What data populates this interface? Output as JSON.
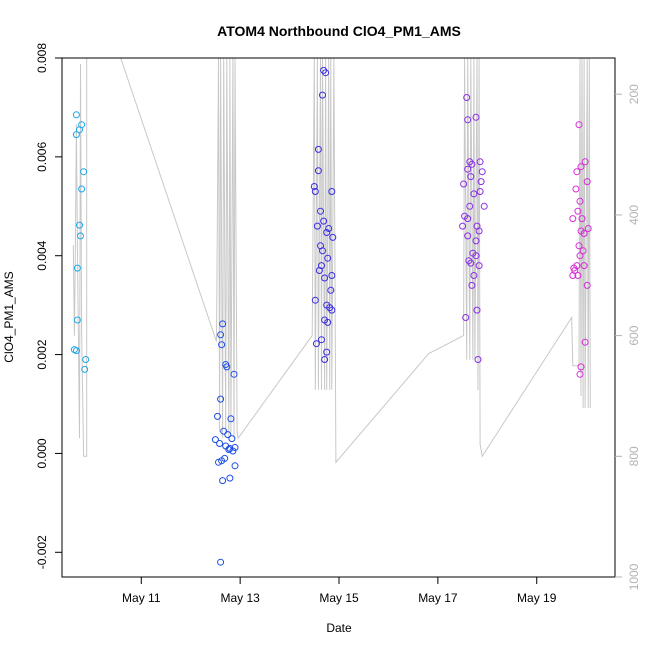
{
  "chart_data": {
    "type": "scatter",
    "title": "ATOM4 Northbound ClO4_PM1_AMS",
    "xlabel": "Date",
    "ylabel": "ClO4_PM1_AMS",
    "xlim": [
      "2018-05-09T09:30",
      "2018-05-20T14:00"
    ],
    "ylim": [
      -0.0025,
      0.008
    ],
    "x_ticks": [
      {
        "date": "2018-05-11",
        "label": "May 11"
      },
      {
        "date": "2018-05-13",
        "label": "May 13"
      },
      {
        "date": "2018-05-15",
        "label": "May 15"
      },
      {
        "date": "2018-05-17",
        "label": "May 17"
      },
      {
        "date": "2018-05-19",
        "label": "May 19"
      }
    ],
    "y_ticks": [
      {
        "value": -0.002,
        "label": "-0.002"
      },
      {
        "value": 0,
        "label": "0.000"
      },
      {
        "value": 0.002,
        "label": "0.002"
      },
      {
        "value": 0.004,
        "label": "0.004"
      },
      {
        "value": 0.006,
        "label": "0.006"
      },
      {
        "value": 0.008,
        "label": "0.008"
      }
    ],
    "secondary_axis": {
      "side": "right",
      "color": "#b3b3b3",
      "reversed": true,
      "range": [
        1000,
        140
      ],
      "ticks": [
        {
          "value": 200,
          "label": "200"
        },
        {
          "value": 400,
          "label": "400"
        },
        {
          "value": 600,
          "label": "600"
        },
        {
          "value": 800,
          "label": "800"
        },
        {
          "value": 1000,
          "label": "1000"
        }
      ]
    },
    "grid": false,
    "legend": "none",
    "marker": "open-circle",
    "colors": {
      "cyan": "#1fa8e8",
      "blue": "#1d4fe6",
      "indigo": "#3a2ee0",
      "purple": "#8c2ee6",
      "magenta": "#d52ed6",
      "line": "#c8c8c8"
    },
    "points": [
      {
        "x": "2018-05-09T16:30",
        "y": 0.00685,
        "c": "cyan"
      },
      {
        "x": "2018-05-09T16:30",
        "y": 0.00645,
        "c": "cyan"
      },
      {
        "x": "2018-05-09T19:00",
        "y": 0.00665,
        "c": "cyan"
      },
      {
        "x": "2018-05-09T18:00",
        "y": 0.00655,
        "c": "cyan"
      },
      {
        "x": "2018-05-09T20:00",
        "y": 0.0057,
        "c": "cyan"
      },
      {
        "x": "2018-05-09T19:00",
        "y": 0.00535,
        "c": "cyan"
      },
      {
        "x": "2018-05-09T18:00",
        "y": 0.00462,
        "c": "cyan"
      },
      {
        "x": "2018-05-09T18:30",
        "y": 0.0044,
        "c": "cyan"
      },
      {
        "x": "2018-05-09T17:00",
        "y": 0.00375,
        "c": "cyan"
      },
      {
        "x": "2018-05-09T17:00",
        "y": 0.0027,
        "c": "cyan"
      },
      {
        "x": "2018-05-09T15:30",
        "y": 0.0021,
        "c": "cyan"
      },
      {
        "x": "2018-05-09T16:30",
        "y": 0.00208,
        "c": "cyan"
      },
      {
        "x": "2018-05-09T21:00",
        "y": 0.0019,
        "c": "cyan"
      },
      {
        "x": "2018-05-09T20:30",
        "y": 0.0017,
        "c": "cyan"
      },
      {
        "x": "2018-05-12T14:30",
        "y": 0.0011,
        "c": "blue"
      },
      {
        "x": "2018-05-12T15:30",
        "y": 0.00262,
        "c": "blue"
      },
      {
        "x": "2018-05-12T14:30",
        "y": 0.0024,
        "c": "blue"
      },
      {
        "x": "2018-05-12T15:00",
        "y": 0.0022,
        "c": "blue"
      },
      {
        "x": "2018-05-12T17:00",
        "y": 0.0018,
        "c": "blue"
      },
      {
        "x": "2018-05-12T17:30",
        "y": 0.00175,
        "c": "blue"
      },
      {
        "x": "2018-05-12T21:00",
        "y": 0.0016,
        "c": "blue"
      },
      {
        "x": "2018-05-12T13:00",
        "y": 0.00075,
        "c": "blue"
      },
      {
        "x": "2018-05-12T19:30",
        "y": 0.0007,
        "c": "blue"
      },
      {
        "x": "2018-05-12T16:00",
        "y": 0.00045,
        "c": "blue"
      },
      {
        "x": "2018-05-12T18:00",
        "y": 0.00038,
        "c": "blue"
      },
      {
        "x": "2018-05-12T20:00",
        "y": 0.0003,
        "c": "blue"
      },
      {
        "x": "2018-05-12T12:00",
        "y": 0.00028,
        "c": "blue"
      },
      {
        "x": "2018-05-12T14:00",
        "y": 0.0002,
        "c": "blue"
      },
      {
        "x": "2018-05-12T17:00",
        "y": 0.00015,
        "c": "blue"
      },
      {
        "x": "2018-05-12T19:00",
        "y": 0.0001,
        "c": "blue"
      },
      {
        "x": "2018-05-12T21:30",
        "y": 0.00012,
        "c": "blue"
      },
      {
        "x": "2018-05-12T20:30",
        "y": 5e-05,
        "c": "blue"
      },
      {
        "x": "2018-05-12T18:30",
        "y": 8e-05,
        "c": "blue"
      },
      {
        "x": "2018-05-12T16:30",
        "y": -0.0001,
        "c": "blue"
      },
      {
        "x": "2018-05-12T13:30",
        "y": -0.00018,
        "c": "blue"
      },
      {
        "x": "2018-05-12T15:00",
        "y": -0.00015,
        "c": "blue"
      },
      {
        "x": "2018-05-12T21:30",
        "y": -0.00025,
        "c": "blue"
      },
      {
        "x": "2018-05-12T15:30",
        "y": -0.00055,
        "c": "blue"
      },
      {
        "x": "2018-05-12T19:00",
        "y": -0.0005,
        "c": "blue"
      },
      {
        "x": "2018-05-12T14:30",
        "y": -0.0022,
        "c": "blue"
      },
      {
        "x": "2018-05-14T16:30",
        "y": 0.00775,
        "c": "indigo"
      },
      {
        "x": "2018-05-14T17:30",
        "y": 0.0077,
        "c": "indigo"
      },
      {
        "x": "2018-05-14T16:00",
        "y": 0.00725,
        "c": "indigo"
      },
      {
        "x": "2018-05-14T14:00",
        "y": 0.00615,
        "c": "indigo"
      },
      {
        "x": "2018-05-14T14:00",
        "y": 0.00572,
        "c": "indigo"
      },
      {
        "x": "2018-05-14T12:00",
        "y": 0.0054,
        "c": "indigo"
      },
      {
        "x": "2018-05-14T12:30",
        "y": 0.0053,
        "c": "indigo"
      },
      {
        "x": "2018-05-14T20:30",
        "y": 0.0053,
        "c": "indigo"
      },
      {
        "x": "2018-05-14T15:00",
        "y": 0.0049,
        "c": "indigo"
      },
      {
        "x": "2018-05-14T16:30",
        "y": 0.0047,
        "c": "indigo"
      },
      {
        "x": "2018-05-14T13:30",
        "y": 0.0046,
        "c": "indigo"
      },
      {
        "x": "2018-05-14T19:00",
        "y": 0.00455,
        "c": "indigo"
      },
      {
        "x": "2018-05-14T18:00",
        "y": 0.00447,
        "c": "indigo"
      },
      {
        "x": "2018-05-14T21:00",
        "y": 0.00437,
        "c": "indigo"
      },
      {
        "x": "2018-05-14T15:00",
        "y": 0.0042,
        "c": "indigo"
      },
      {
        "x": "2018-05-14T16:00",
        "y": 0.0041,
        "c": "indigo"
      },
      {
        "x": "2018-05-14T18:30",
        "y": 0.00395,
        "c": "indigo"
      },
      {
        "x": "2018-05-14T15:30",
        "y": 0.0038,
        "c": "indigo"
      },
      {
        "x": "2018-05-14T14:30",
        "y": 0.0037,
        "c": "indigo"
      },
      {
        "x": "2018-05-14T17:00",
        "y": 0.00355,
        "c": "indigo"
      },
      {
        "x": "2018-05-14T20:30",
        "y": 0.0036,
        "c": "indigo"
      },
      {
        "x": "2018-05-14T20:00",
        "y": 0.0033,
        "c": "indigo"
      },
      {
        "x": "2018-05-14T12:30",
        "y": 0.0031,
        "c": "indigo"
      },
      {
        "x": "2018-05-14T18:00",
        "y": 0.003,
        "c": "indigo"
      },
      {
        "x": "2018-05-14T19:30",
        "y": 0.00295,
        "c": "indigo"
      },
      {
        "x": "2018-05-14T20:30",
        "y": 0.0029,
        "c": "indigo"
      },
      {
        "x": "2018-05-14T17:00",
        "y": 0.0027,
        "c": "indigo"
      },
      {
        "x": "2018-05-14T18:30",
        "y": 0.00265,
        "c": "indigo"
      },
      {
        "x": "2018-05-14T15:30",
        "y": 0.0023,
        "c": "indigo"
      },
      {
        "x": "2018-05-14T13:00",
        "y": 0.00222,
        "c": "indigo"
      },
      {
        "x": "2018-05-14T18:00",
        "y": 0.00205,
        "c": "indigo"
      },
      {
        "x": "2018-05-14T17:00",
        "y": 0.0019,
        "c": "indigo"
      },
      {
        "x": "2018-05-17T14:00",
        "y": 0.0072,
        "c": "purple"
      },
      {
        "x": "2018-05-17T18:30",
        "y": 0.0068,
        "c": "purple"
      },
      {
        "x": "2018-05-17T14:30",
        "y": 0.00675,
        "c": "purple"
      },
      {
        "x": "2018-05-17T15:30",
        "y": 0.0059,
        "c": "purple"
      },
      {
        "x": "2018-05-17T16:30",
        "y": 0.00585,
        "c": "purple"
      },
      {
        "x": "2018-05-17T20:30",
        "y": 0.0059,
        "c": "purple"
      },
      {
        "x": "2018-05-17T14:30",
        "y": 0.00575,
        "c": "purple"
      },
      {
        "x": "2018-05-17T21:30",
        "y": 0.0057,
        "c": "purple"
      },
      {
        "x": "2018-05-17T16:00",
        "y": 0.0056,
        "c": "purple"
      },
      {
        "x": "2018-05-17T12:30",
        "y": 0.00545,
        "c": "purple"
      },
      {
        "x": "2018-05-17T21:00",
        "y": 0.0055,
        "c": "purple"
      },
      {
        "x": "2018-05-17T17:30",
        "y": 0.00525,
        "c": "purple"
      },
      {
        "x": "2018-05-17T20:30",
        "y": 0.0053,
        "c": "purple"
      },
      {
        "x": "2018-05-17T15:30",
        "y": 0.005,
        "c": "purple"
      },
      {
        "x": "2018-05-17T22:30",
        "y": 0.005,
        "c": "purple"
      },
      {
        "x": "2018-05-17T13:00",
        "y": 0.0048,
        "c": "purple"
      },
      {
        "x": "2018-05-17T14:30",
        "y": 0.00475,
        "c": "purple"
      },
      {
        "x": "2018-05-17T19:00",
        "y": 0.0046,
        "c": "purple"
      },
      {
        "x": "2018-05-17T12:00",
        "y": 0.0046,
        "c": "purple"
      },
      {
        "x": "2018-05-17T20:00",
        "y": 0.0045,
        "c": "purple"
      },
      {
        "x": "2018-05-17T14:30",
        "y": 0.0044,
        "c": "purple"
      },
      {
        "x": "2018-05-17T18:30",
        "y": 0.0043,
        "c": "purple"
      },
      {
        "x": "2018-05-17T17:00",
        "y": 0.00405,
        "c": "purple"
      },
      {
        "x": "2018-05-17T18:30",
        "y": 0.004,
        "c": "purple"
      },
      {
        "x": "2018-05-17T20:00",
        "y": 0.0038,
        "c": "purple"
      },
      {
        "x": "2018-05-17T15:00",
        "y": 0.0039,
        "c": "purple"
      },
      {
        "x": "2018-05-17T16:00",
        "y": 0.00385,
        "c": "purple"
      },
      {
        "x": "2018-05-17T17:30",
        "y": 0.0036,
        "c": "purple"
      },
      {
        "x": "2018-05-17T16:30",
        "y": 0.0034,
        "c": "purple"
      },
      {
        "x": "2018-05-17T19:00",
        "y": 0.0029,
        "c": "purple"
      },
      {
        "x": "2018-05-17T13:30",
        "y": 0.00275,
        "c": "purple"
      },
      {
        "x": "2018-05-17T19:30",
        "y": 0.0019,
        "c": "purple"
      },
      {
        "x": "2018-05-19T20:30",
        "y": 0.00665,
        "c": "magenta"
      },
      {
        "x": "2018-05-19T21:30",
        "y": 0.0058,
        "c": "magenta"
      },
      {
        "x": "2018-05-19T23:30",
        "y": 0.0059,
        "c": "magenta"
      },
      {
        "x": "2018-05-19T19:30",
        "y": 0.0057,
        "c": "magenta"
      },
      {
        "x": "2018-05-20T00:30",
        "y": 0.0055,
        "c": "magenta"
      },
      {
        "x": "2018-05-19T19:00",
        "y": 0.00535,
        "c": "magenta"
      },
      {
        "x": "2018-05-19T21:00",
        "y": 0.0051,
        "c": "magenta"
      },
      {
        "x": "2018-05-19T20:00",
        "y": 0.0049,
        "c": "magenta"
      },
      {
        "x": "2018-05-19T17:30",
        "y": 0.00475,
        "c": "magenta"
      },
      {
        "x": "2018-05-19T22:00",
        "y": 0.00475,
        "c": "magenta"
      },
      {
        "x": "2018-05-20T01:00",
        "y": 0.00455,
        "c": "magenta"
      },
      {
        "x": "2018-05-19T21:30",
        "y": 0.0045,
        "c": "magenta"
      },
      {
        "x": "2018-05-19T23:00",
        "y": 0.00445,
        "c": "magenta"
      },
      {
        "x": "2018-05-19T20:30",
        "y": 0.0042,
        "c": "magenta"
      },
      {
        "x": "2018-05-19T22:30",
        "y": 0.0041,
        "c": "magenta"
      },
      {
        "x": "2018-05-19T21:00",
        "y": 0.004,
        "c": "magenta"
      },
      {
        "x": "2018-05-19T19:30",
        "y": 0.0038,
        "c": "magenta"
      },
      {
        "x": "2018-05-19T18:30",
        "y": 0.0037,
        "c": "magenta"
      },
      {
        "x": "2018-05-19T18:00",
        "y": 0.00375,
        "c": "magenta"
      },
      {
        "x": "2018-05-19T23:00",
        "y": 0.0038,
        "c": "magenta"
      },
      {
        "x": "2018-05-19T20:00",
        "y": 0.0036,
        "c": "magenta"
      },
      {
        "x": "2018-05-19T17:30",
        "y": 0.0036,
        "c": "magenta"
      },
      {
        "x": "2018-05-20T00:30",
        "y": 0.0034,
        "c": "magenta"
      },
      {
        "x": "2018-05-19T23:30",
        "y": 0.00225,
        "c": "magenta"
      },
      {
        "x": "2018-05-19T21:30",
        "y": 0.00175,
        "c": "magenta"
      },
      {
        "x": "2018-05-19T21:00",
        "y": 0.0016,
        "c": "magenta"
      }
    ],
    "altitude_series": {
      "name": "",
      "color": "#c8c8c8",
      "axis": "secondary",
      "points": [
        [
          "2018-05-09T15:00",
          450
        ],
        [
          "2018-05-09T15:30",
          600
        ],
        [
          "2018-05-09T16:00",
          450
        ],
        [
          "2018-05-09T16:30",
          250
        ],
        [
          "2018-05-09T17:00",
          450
        ],
        [
          "2018-05-09T18:00",
          770
        ],
        [
          "2018-05-09T18:30",
          150
        ],
        [
          "2018-05-09T19:00",
          590
        ],
        [
          "2018-05-09T20:00",
          800
        ],
        [
          "2018-05-09T21:30",
          800
        ],
        [
          "2018-05-09T21:30",
          140
        ],
        [
          "2018-05-10T14:00",
          140
        ],
        [
          "2018-05-12T12:30",
          610
        ],
        [
          "2018-05-12T13:30",
          140
        ],
        [
          "2018-05-12T14:00",
          760
        ],
        [
          "2018-05-12T14:30",
          140
        ],
        [
          "2018-05-12T15:30",
          770
        ],
        [
          "2018-05-12T16:00",
          140
        ],
        [
          "2018-05-12T17:00",
          760
        ],
        [
          "2018-05-12T17:30",
          140
        ],
        [
          "2018-05-12T18:30",
          770
        ],
        [
          "2018-05-12T19:00",
          140
        ],
        [
          "2018-05-12T19:30",
          760
        ],
        [
          "2018-05-12T20:30",
          140
        ],
        [
          "2018-05-12T21:00",
          770
        ],
        [
          "2018-05-12T21:30",
          140
        ],
        [
          "2018-05-12T22:30",
          760
        ],
        [
          "2018-05-12T23:00",
          770
        ],
        [
          "2018-05-14T11:00",
          600
        ],
        [
          "2018-05-14T12:00",
          140
        ],
        [
          "2018-05-14T12:30",
          690
        ],
        [
          "2018-05-14T13:30",
          140
        ],
        [
          "2018-05-14T14:00",
          690
        ],
        [
          "2018-05-14T15:00",
          140
        ],
        [
          "2018-05-14T15:30",
          690
        ],
        [
          "2018-05-14T16:00",
          140
        ],
        [
          "2018-05-14T17:00",
          690
        ],
        [
          "2018-05-14T17:30",
          140
        ],
        [
          "2018-05-14T18:00",
          690
        ],
        [
          "2018-05-14T19:00",
          140
        ],
        [
          "2018-05-14T19:30",
          690
        ],
        [
          "2018-05-14T20:00",
          140
        ],
        [
          "2018-05-14T20:30",
          690
        ],
        [
          "2018-05-14T21:30",
          140
        ],
        [
          "2018-05-14T22:30",
          810
        ],
        [
          "2018-05-16T19:30",
          630
        ],
        [
          "2018-05-17T12:30",
          600
        ],
        [
          "2018-05-17T13:00",
          140
        ],
        [
          "2018-05-17T14:00",
          640
        ],
        [
          "2018-05-17T14:30",
          140
        ],
        [
          "2018-05-17T15:30",
          640
        ],
        [
          "2018-05-17T16:00",
          140
        ],
        [
          "2018-05-17T17:00",
          640
        ],
        [
          "2018-05-17T17:30",
          140
        ],
        [
          "2018-05-17T18:00",
          640
        ],
        [
          "2018-05-17T19:00",
          140
        ],
        [
          "2018-05-17T19:30",
          690
        ],
        [
          "2018-05-17T20:00",
          140
        ],
        [
          "2018-05-17T20:30",
          780
        ],
        [
          "2018-05-17T21:30",
          800
        ],
        [
          "2018-05-19T17:00",
          570
        ],
        [
          "2018-05-19T17:30",
          650
        ],
        [
          "2018-05-19T20:30",
          650
        ],
        [
          "2018-05-19T21:00",
          140
        ],
        [
          "2018-05-19T21:30",
          700
        ],
        [
          "2018-05-19T22:00",
          140
        ],
        [
          "2018-05-19T22:30",
          720
        ],
        [
          "2018-05-19T23:00",
          140
        ],
        [
          "2018-05-19T23:30",
          720
        ],
        [
          "2018-05-20T00:30",
          140
        ],
        [
          "2018-05-20T01:00",
          720
        ],
        [
          "2018-05-20T01:30",
          140
        ],
        [
          "2018-05-20T02:00",
          720
        ]
      ]
    }
  }
}
